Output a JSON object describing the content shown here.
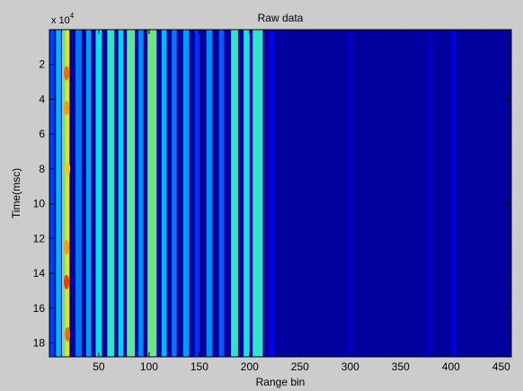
{
  "chart_data": {
    "type": "heatmap",
    "title": "Raw data",
    "xlabel": "Range bin",
    "ylabel": "Time(msc)",
    "y_multiplier_base": "x 10",
    "y_multiplier_exp": "4",
    "xlim": [
      1,
      460
    ],
    "ylim": [
      0,
      18.8
    ],
    "y_reversed": true,
    "x_ticks": [
      50,
      100,
      150,
      200,
      250,
      300,
      350,
      400,
      450
    ],
    "y_ticks": [
      2,
      4,
      6,
      8,
      10,
      12,
      14,
      16,
      18
    ],
    "colormap": [
      "#00008f",
      "#0000ff",
      "#00ffff",
      "#ffff00",
      "#ff0000"
    ],
    "background_color": "#00009c",
    "columns": [
      {
        "x": 3,
        "width": 6,
        "intensity": 0.32
      },
      {
        "x": 10,
        "width": 5,
        "intensity": 0.45
      },
      {
        "x": 17,
        "width": 7,
        "intensity": 0.62
      },
      {
        "x": 19,
        "width": 4,
        "intensity": 0.78
      },
      {
        "x": 30,
        "width": 6,
        "intensity": 0.38
      },
      {
        "x": 40,
        "width": 5,
        "intensity": 0.42
      },
      {
        "x": 50,
        "width": 6,
        "intensity": 0.5
      },
      {
        "x": 62,
        "width": 7,
        "intensity": 0.55
      },
      {
        "x": 72,
        "width": 5,
        "intensity": 0.48
      },
      {
        "x": 82,
        "width": 8,
        "intensity": 0.6
      },
      {
        "x": 92,
        "width": 5,
        "intensity": 0.4
      },
      {
        "x": 103,
        "width": 9,
        "intensity": 0.62
      },
      {
        "x": 115,
        "width": 5,
        "intensity": 0.45
      },
      {
        "x": 125,
        "width": 5,
        "intensity": 0.38
      },
      {
        "x": 137,
        "width": 6,
        "intensity": 0.42
      },
      {
        "x": 148,
        "width": 5,
        "intensity": 0.3
      },
      {
        "x": 160,
        "width": 6,
        "intensity": 0.4
      },
      {
        "x": 172,
        "width": 5,
        "intensity": 0.35
      },
      {
        "x": 185,
        "width": 7,
        "intensity": 0.55
      },
      {
        "x": 197,
        "width": 6,
        "intensity": 0.52
      },
      {
        "x": 208,
        "width": 10,
        "intensity": 0.55
      },
      {
        "x": 222,
        "width": 6,
        "intensity": 0.22
      },
      {
        "x": 300,
        "width": 6,
        "intensity": 0.12
      },
      {
        "x": 380,
        "width": 5,
        "intensity": 0.12
      },
      {
        "x": 403,
        "width": 5,
        "intensity": 0.18
      }
    ],
    "hot_spots": [
      {
        "x": 18,
        "y": 2.5,
        "intensity": 0.9
      },
      {
        "x": 18,
        "y": 4.5,
        "intensity": 0.85
      },
      {
        "x": 19,
        "y": 8.0,
        "intensity": 0.8
      },
      {
        "x": 18,
        "y": 12.5,
        "intensity": 0.85
      },
      {
        "x": 18,
        "y": 14.5,
        "intensity": 0.95
      },
      {
        "x": 19,
        "y": 17.5,
        "intensity": 0.9
      }
    ]
  }
}
